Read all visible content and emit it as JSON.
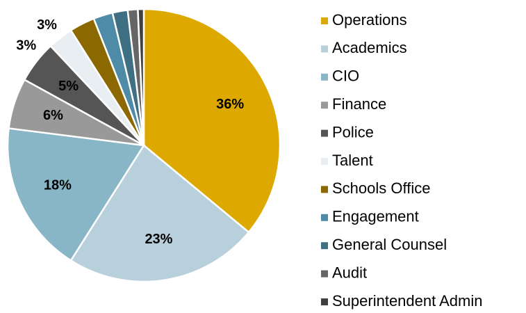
{
  "chart_data": {
    "type": "pie",
    "categories": [
      "Operations",
      "Academics",
      "CIO",
      "Finance",
      "Police",
      "Talent",
      "Schools Office",
      "Engagement",
      "General Counsel",
      "Audit",
      "Superintendent Admin"
    ],
    "values": [
      36,
      23,
      18,
      6,
      5,
      3,
      3,
      2.3,
      1.8,
      1.2,
      0.7
    ],
    "value_labels": [
      "36%",
      "23%",
      "18%",
      "6%",
      "5%",
      "3%",
      "3%",
      null,
      null,
      null,
      null
    ],
    "colors": [
      "#dda900",
      "#b8d0dc",
      "#89b6c6",
      "#999999",
      "#555555",
      "#e9eef3",
      "#8b6800",
      "#4e8ba6",
      "#3f6f82",
      "#666666",
      "#404040"
    ],
    "legend": "right"
  }
}
